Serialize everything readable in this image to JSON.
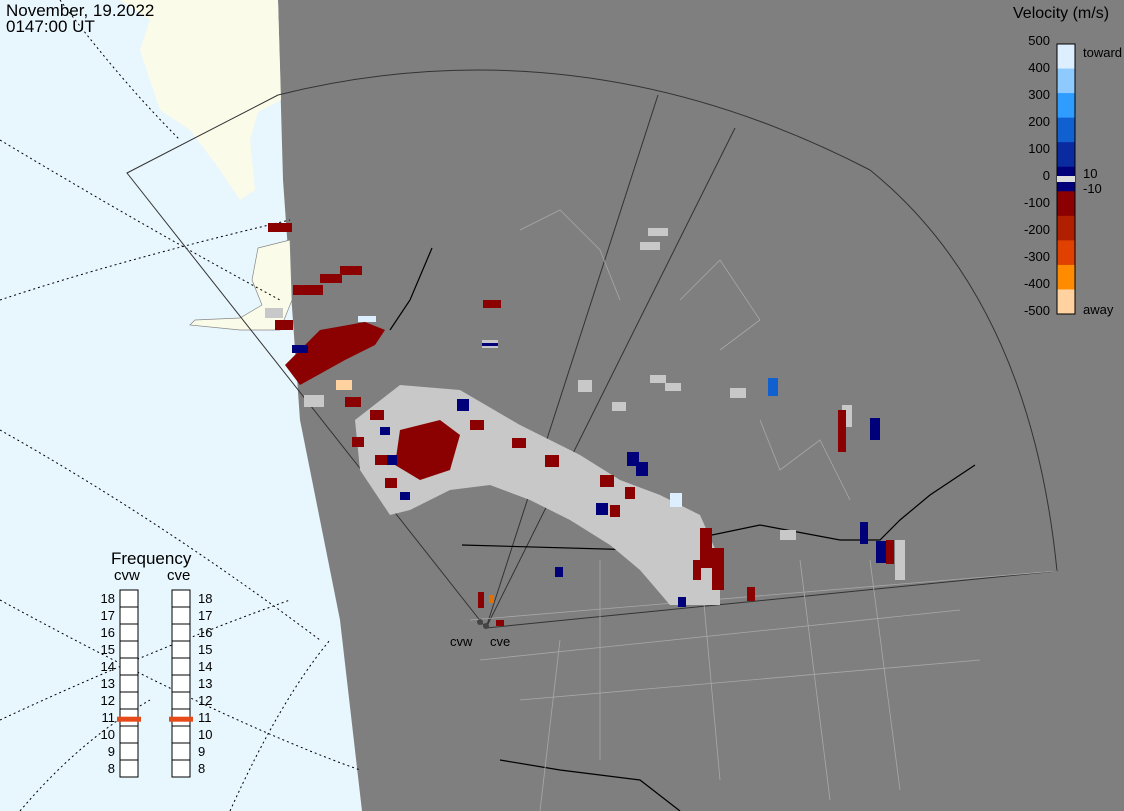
{
  "header": {
    "date": "November, 19.2022",
    "time": "0147:00 UT"
  },
  "colorbar": {
    "title": "Velocity (m/s)",
    "ticks": [
      "500",
      "400",
      "300",
      "200",
      "100",
      "0",
      "-100",
      "-200",
      "-300",
      "-400",
      "-500"
    ],
    "mark_upper": "10",
    "mark_lower": "-10",
    "toward_label": "toward",
    "away_label": "away",
    "colors": [
      "#ddeeff",
      "#8fcaff",
      "#2f9cff",
      "#1060d0",
      "#0a2aa0",
      "#00007a",
      "#8b0000",
      "#b02000",
      "#e04000",
      "#ff8c00",
      "#ffd2a0"
    ]
  },
  "frequency": {
    "title": "Frequency",
    "radars": [
      {
        "name": "cvw",
        "frequency_mhz": 10.9
      },
      {
        "name": "cve",
        "frequency_mhz": 10.9
      }
    ],
    "scale": [
      "18",
      "17",
      "16",
      "15",
      "14",
      "13",
      "12",
      "11",
      "10",
      "9",
      "8"
    ],
    "marker_color": "#e64a19"
  },
  "map": {
    "radar_labels": [
      "cvw",
      "cve"
    ],
    "land_color": "#7f7f7f",
    "sea_color": "#e8f6fd",
    "ice_color": "#fbfbea",
    "gnd_scatter_color": "#c8c8c8"
  }
}
